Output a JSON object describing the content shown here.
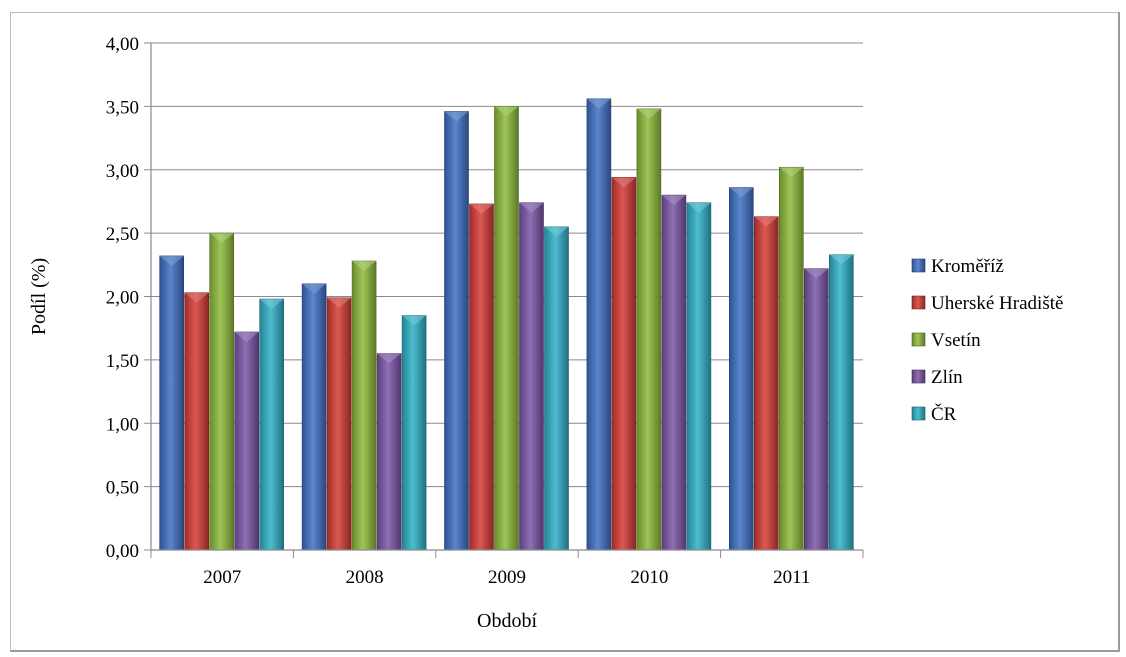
{
  "chart_data": {
    "type": "bar",
    "title": "",
    "xlabel": "Období",
    "ylabel": "Podíl (%)",
    "categories": [
      "2007",
      "2008",
      "2009",
      "2010",
      "2011"
    ],
    "ylim": [
      0,
      4
    ],
    "ytick_values": [
      0,
      0.5,
      1,
      1.5,
      2,
      2.5,
      3,
      3.5,
      4
    ],
    "ytick_labels": [
      "0,00",
      "0,50",
      "1,00",
      "1,50",
      "2,00",
      "2,50",
      "3,00",
      "3,50",
      "4,00"
    ],
    "grid": true,
    "legend_position": "right",
    "series": [
      {
        "name": "Kroměříž",
        "color": "#3f6fc4",
        "values": [
          2.32,
          2.1,
          3.46,
          3.56,
          2.86
        ]
      },
      {
        "name": "Uherské Hradiště",
        "color": "#d63b35",
        "values": [
          2.03,
          1.99,
          2.73,
          2.94,
          2.63
        ]
      },
      {
        "name": "Vsetín",
        "color": "#8dbb3a",
        "values": [
          2.5,
          2.28,
          3.5,
          3.48,
          3.02
        ]
      },
      {
        "name": "Zlín",
        "color": "#7b55a8",
        "values": [
          1.72,
          1.55,
          2.74,
          2.8,
          2.22
        ]
      },
      {
        "name": "ČR",
        "color": "#2fb0c8",
        "values": [
          1.98,
          1.85,
          2.55,
          2.74,
          2.33
        ]
      }
    ]
  }
}
